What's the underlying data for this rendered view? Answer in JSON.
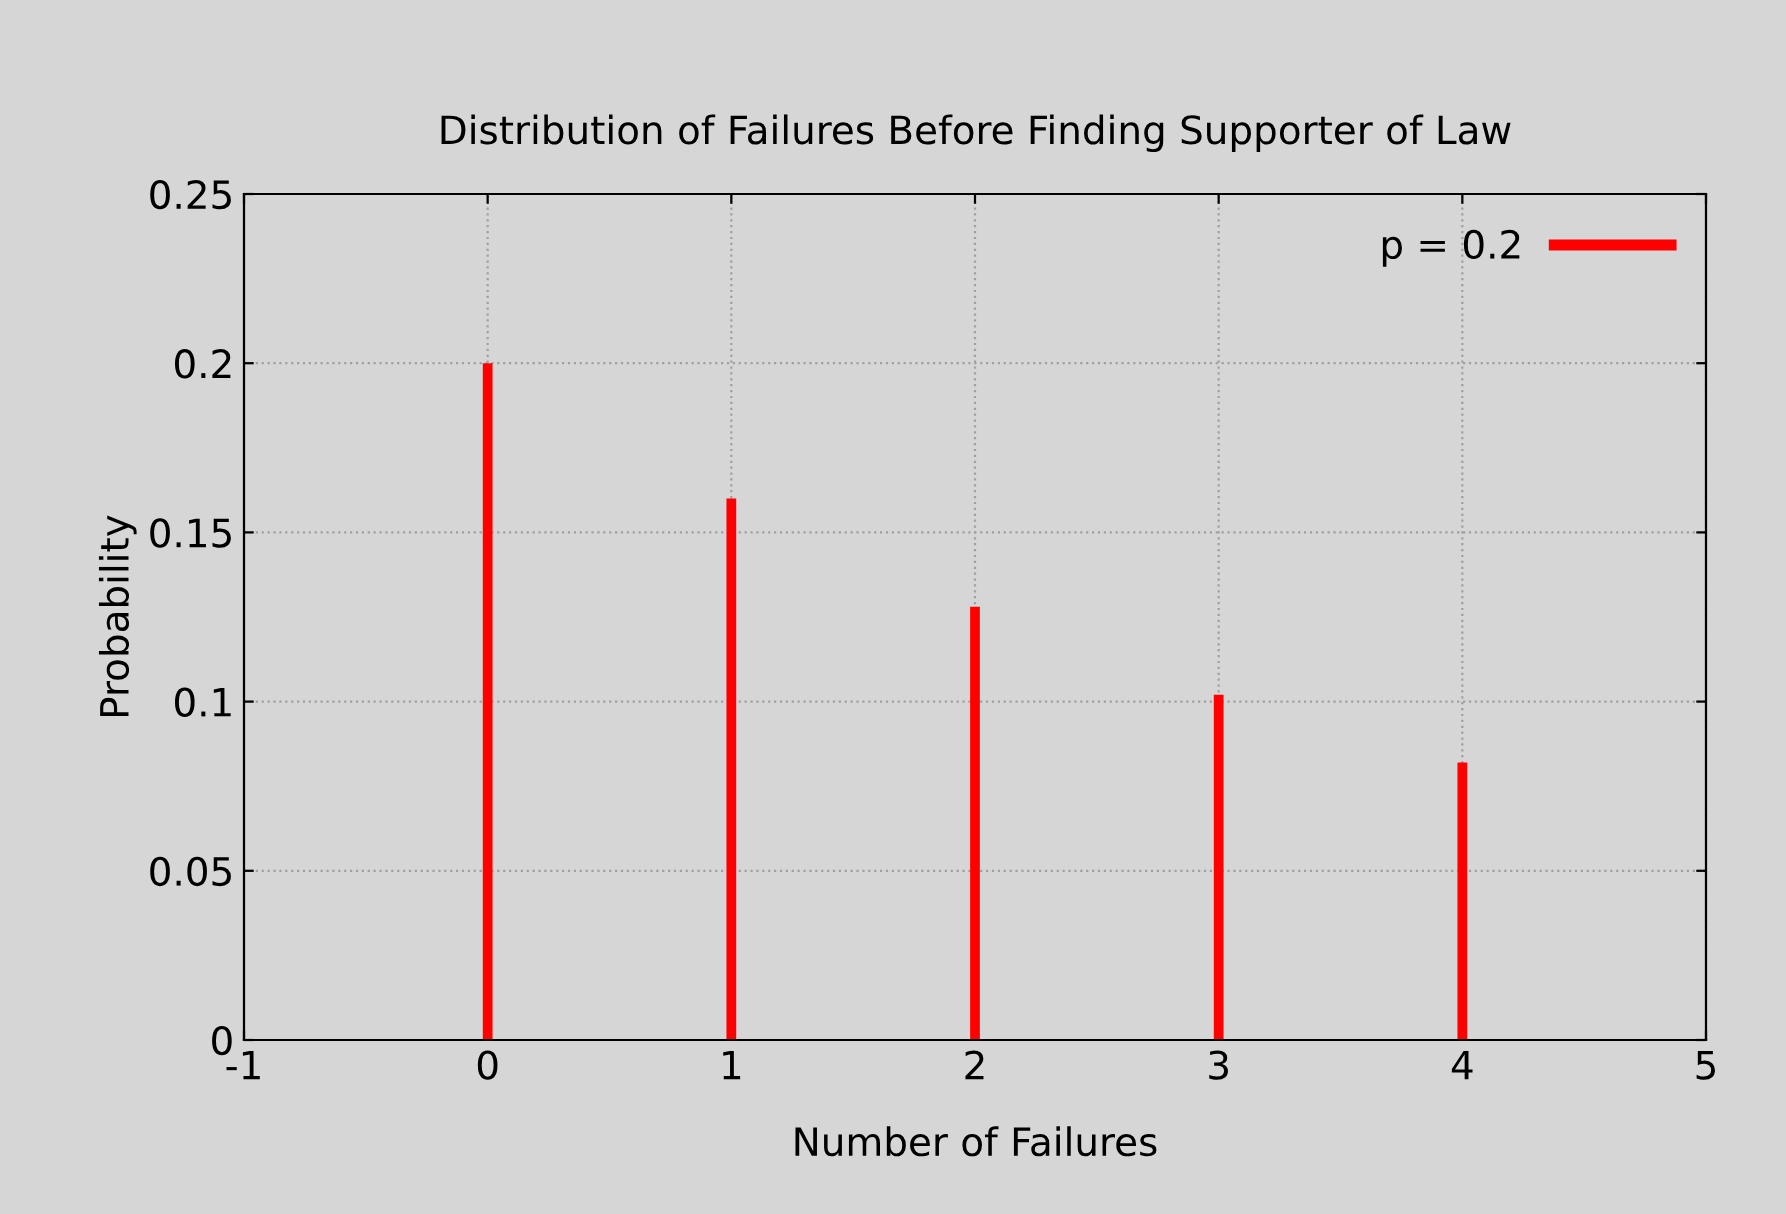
{
  "chart_data": {
    "type": "bar",
    "title": "Distribution of Failures Before Finding Supporter of Law",
    "xlabel": "Number of Failures",
    "ylabel": "Probability",
    "x": [
      0,
      1,
      2,
      3,
      4
    ],
    "series": [
      {
        "name": "p = 0.2",
        "color": "#ff0000",
        "values": [
          0.2,
          0.16,
          0.128,
          0.102,
          0.082
        ]
      }
    ],
    "xlim": [
      -1,
      5
    ],
    "xticks": [
      -1,
      0,
      1,
      2,
      3,
      4,
      5
    ],
    "ylim": [
      0,
      0.25
    ],
    "yticks": [
      0,
      0.05,
      0.1,
      0.15,
      0.2,
      0.25
    ],
    "grid": true,
    "legend": "top right"
  }
}
